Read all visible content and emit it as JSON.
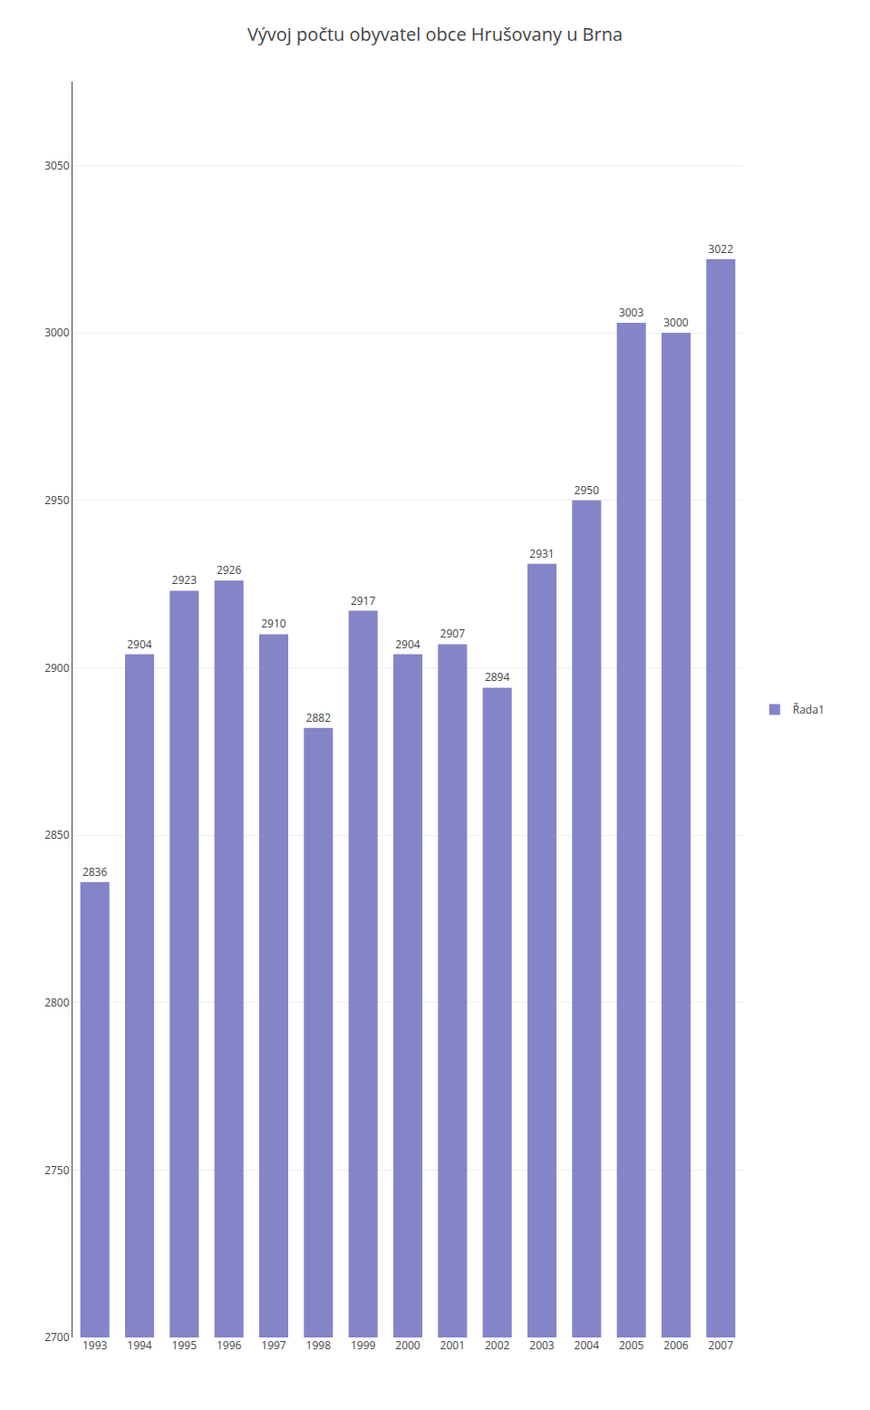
{
  "chart_data": {
    "type": "bar",
    "title": "Vývoj počtu obyvatel obce Hrušovany u Brna",
    "categories": [
      "1993",
      "1994",
      "1995",
      "1996",
      "1997",
      "1998",
      "1999",
      "2000",
      "2001",
      "2002",
      "2003",
      "2004",
      "2005",
      "2006",
      "2007"
    ],
    "series": [
      {
        "name": "Řada1",
        "color": "#8484C8",
        "values": [
          2836,
          2904,
          2923,
          2926,
          2910,
          2882,
          2917,
          2904,
          2907,
          2894,
          2931,
          2950,
          3003,
          3000,
          3022
        ]
      }
    ],
    "ylim": [
      2700,
      3075
    ],
    "yticks": [
      2700,
      2750,
      2800,
      2850,
      2900,
      2950,
      3000,
      3050
    ],
    "grid": true,
    "legend": "right",
    "data_labels": true
  }
}
